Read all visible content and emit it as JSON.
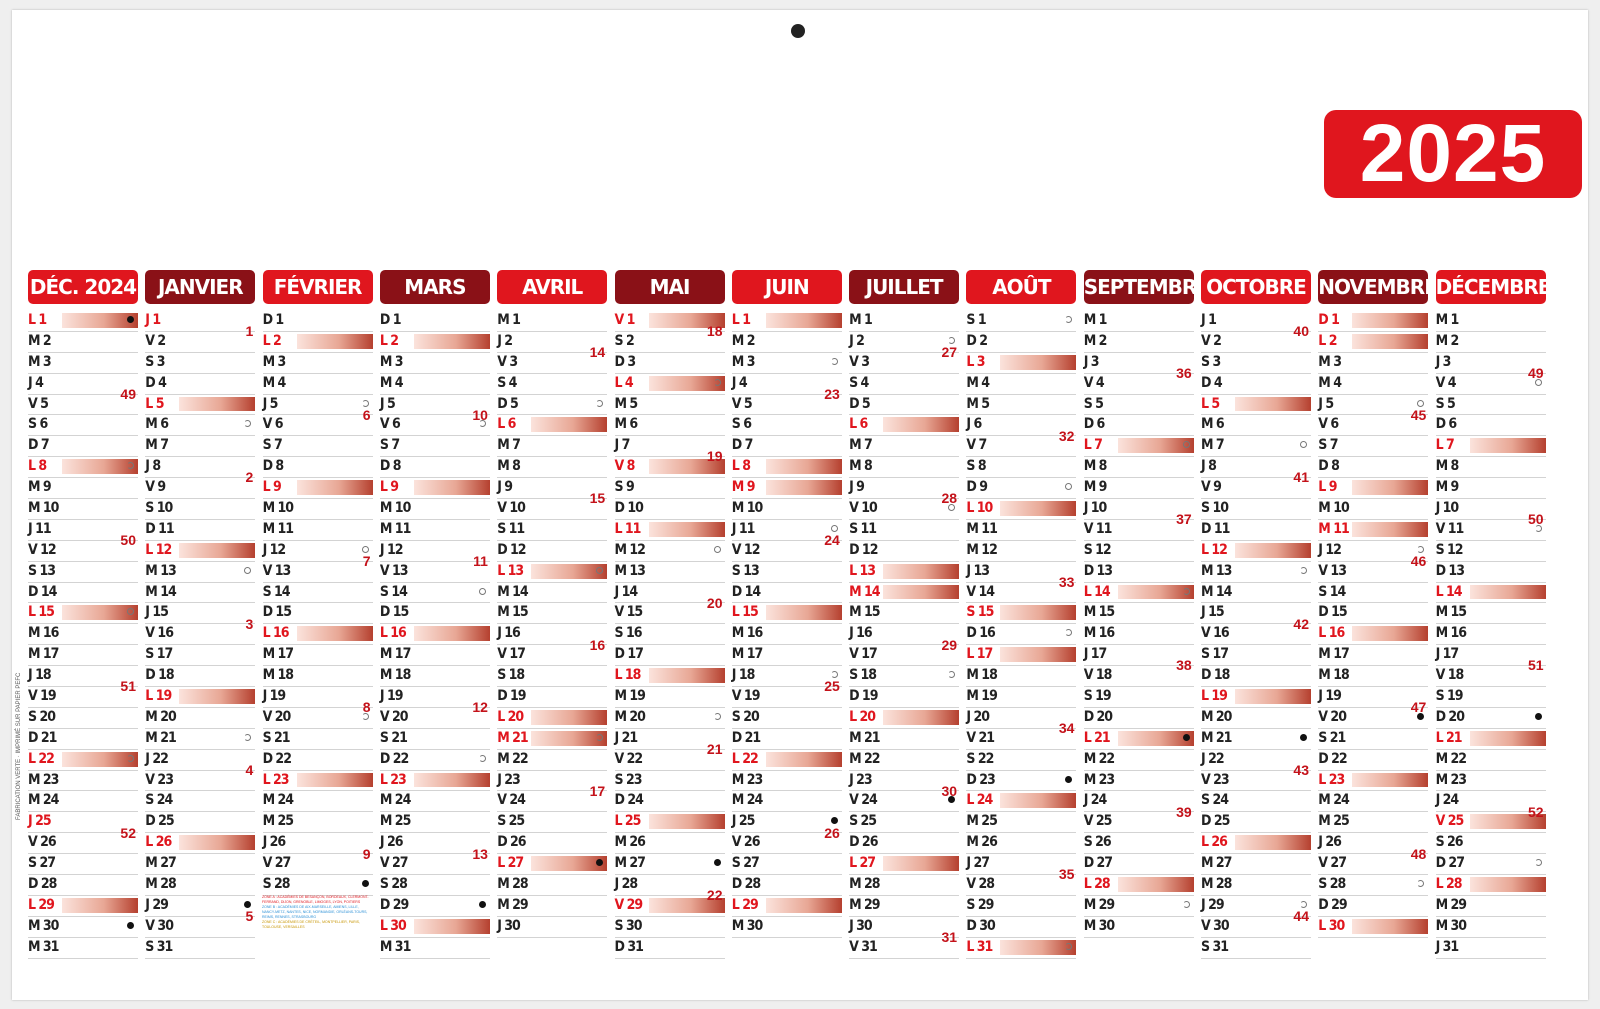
{
  "year": "2025",
  "colors": {
    "red": "#e0161e",
    "dark": "#8a1117"
  },
  "legend_lines": [
    "ZONE A : ACADÉMIES DE BESANÇON, BORDEAUX, CLERMONT-FERRAND, DIJON, GRENOBLE, LIMOGES, LYON, POITIERS",
    "ZONE B : ACADÉMIES DE AIX-MARSEILLE, AMIENS, LILLE, NANCY-METZ, NANTES, NICE, NORMANDIE, ORLÉANS-TOURS, REIMS, RENNES, STRASBOURG",
    "ZONE C : ACADÉMIES DE CRÉTEIL, MONTPELLIER, PARIS, TOULOUSE, VERSAILLES"
  ],
  "side_text": "FABRICATION VERTE · IMPRIMÉ SUR PAPIER PEFC",
  "months": [
    {
      "name": "DÉC. 2024",
      "style": "red",
      "first": 0,
      "days": 31,
      "weeks": [
        {
          "d": 4,
          "n": "49"
        },
        {
          "d": 11,
          "n": "50"
        },
        {
          "d": 18,
          "n": "51"
        },
        {
          "d": 25,
          "n": "52"
        }
      ],
      "hl": [
        1,
        8,
        15,
        22,
        29
      ],
      "we": [
        1,
        8,
        15,
        22,
        25,
        29
      ],
      "moons": {
        "1": "new",
        "8": "q",
        "15": "full",
        "22": "q",
        "30": "new"
      },
      "vac": {}
    },
    {
      "name": "JANVIER",
      "style": "dark",
      "first": 3,
      "days": 31,
      "weeks": [
        {
          "d": 1,
          "n": "1"
        },
        {
          "d": 8,
          "n": "2"
        },
        {
          "d": 15,
          "n": "3"
        },
        {
          "d": 22,
          "n": "4"
        },
        {
          "d": 29,
          "n": "5"
        }
      ],
      "hl": [
        5,
        12,
        19,
        26
      ],
      "we": [
        1,
        5,
        12,
        19,
        26
      ],
      "moons": {
        "6": "q",
        "13": "full",
        "21": "q",
        "29": "new"
      },
      "vac": {}
    },
    {
      "name": "FÉVRIER",
      "style": "red",
      "first": 6,
      "days": 28,
      "weeks": [
        {
          "d": 5,
          "n": "6"
        },
        {
          "d": 12,
          "n": "7"
        },
        {
          "d": 19,
          "n": "8"
        },
        {
          "d": 26,
          "n": "9"
        }
      ],
      "hl": [
        2,
        9,
        16,
        23
      ],
      "we": [
        2,
        9,
        16,
        23
      ],
      "moons": {
        "5": "q",
        "12": "full",
        "20": "q",
        "28": "new"
      },
      "vac": {}
    },
    {
      "name": "MARS",
      "style": "dark",
      "first": 6,
      "days": 31,
      "weeks": [
        {
          "d": 5,
          "n": "10"
        },
        {
          "d": 12,
          "n": "11"
        },
        {
          "d": 19,
          "n": "12"
        },
        {
          "d": 26,
          "n": "13"
        }
      ],
      "hl": [
        2,
        9,
        16,
        23,
        30
      ],
      "we": [
        2,
        9,
        16,
        23,
        30
      ],
      "moons": {
        "6": "q",
        "14": "full",
        "22": "q",
        "29": "new"
      },
      "vac": {}
    },
    {
      "name": "AVRIL",
      "style": "red",
      "first": 2,
      "days": 30,
      "weeks": [
        {
          "d": 2,
          "n": "14"
        },
        {
          "d": 9,
          "n": "15"
        },
        {
          "d": 16,
          "n": "16"
        },
        {
          "d": 23,
          "n": "17"
        }
      ],
      "hl": [
        6,
        13,
        20,
        21,
        27
      ],
      "we": [
        6,
        13,
        20,
        21,
        27
      ],
      "moons": {
        "5": "q",
        "13": "full",
        "21": "q",
        "27": "new"
      },
      "vac": {}
    },
    {
      "name": "MAI",
      "style": "dark",
      "first": 4,
      "days": 31,
      "weeks": [
        {
          "d": 1,
          "n": "18"
        },
        {
          "d": 7,
          "n": "19"
        },
        {
          "d": 14,
          "n": "20"
        },
        {
          "d": 21,
          "n": "21"
        },
        {
          "d": 28,
          "n": "22"
        }
      ],
      "hl": [
        1,
        4,
        8,
        11,
        18,
        25,
        29
      ],
      "we": [
        1,
        4,
        8,
        11,
        18,
        25,
        29
      ],
      "moons": {
        "4": "q",
        "12": "full",
        "20": "q",
        "27": "new"
      },
      "vac": {}
    },
    {
      "name": "JUIN",
      "style": "red",
      "first": 0,
      "days": 30,
      "weeks": [
        {
          "d": 4,
          "n": "23"
        },
        {
          "d": 11,
          "n": "24"
        },
        {
          "d": 18,
          "n": "25"
        },
        {
          "d": 25,
          "n": "26"
        }
      ],
      "hl": [
        1,
        8,
        9,
        15,
        22,
        29
      ],
      "we": [
        1,
        8,
        9,
        15,
        22,
        29
      ],
      "moons": {
        "3": "q",
        "11": "full",
        "18": "q",
        "25": "new"
      },
      "vac": {}
    },
    {
      "name": "JUILLET",
      "style": "dark",
      "first": 2,
      "days": 31,
      "weeks": [
        {
          "d": 2,
          "n": "27"
        },
        {
          "d": 9,
          "n": "28"
        },
        {
          "d": 16,
          "n": "29"
        },
        {
          "d": 23,
          "n": "30"
        },
        {
          "d": 30,
          "n": "31"
        }
      ],
      "hl": [
        6,
        13,
        14,
        20,
        27
      ],
      "we": [
        6,
        13,
        14,
        20,
        27
      ],
      "moons": {
        "2": "q",
        "10": "full",
        "18": "q",
        "24": "new"
      },
      "vac": {}
    },
    {
      "name": "AOÛT",
      "style": "red",
      "first": 5,
      "days": 31,
      "weeks": [
        {
          "d": 6,
          "n": "32"
        },
        {
          "d": 13,
          "n": "33"
        },
        {
          "d": 20,
          "n": "34"
        },
        {
          "d": 27,
          "n": "35"
        }
      ],
      "hl": [
        3,
        10,
        15,
        17,
        24,
        31
      ],
      "we": [
        3,
        10,
        15,
        17,
        24,
        31
      ],
      "moons": {
        "1": "q",
        "9": "full",
        "16": "q",
        "23": "new",
        "31": "q"
      },
      "vac": {}
    },
    {
      "name": "SEPTEMBRE",
      "style": "dark",
      "first": 1,
      "days": 30,
      "weeks": [
        {
          "d": 3,
          "n": "36"
        },
        {
          "d": 10,
          "n": "37"
        },
        {
          "d": 17,
          "n": "38"
        },
        {
          "d": 24,
          "n": "39"
        }
      ],
      "hl": [
        7,
        14,
        21,
        28
      ],
      "we": [
        7,
        14,
        21,
        28
      ],
      "moons": {
        "7": "full",
        "14": "q",
        "21": "new",
        "29": "q"
      },
      "vac": {}
    },
    {
      "name": "OCTOBRE",
      "style": "red",
      "first": 3,
      "days": 31,
      "weeks": [
        {
          "d": 1,
          "n": "40"
        },
        {
          "d": 8,
          "n": "41"
        },
        {
          "d": 15,
          "n": "42"
        },
        {
          "d": 22,
          "n": "43"
        },
        {
          "d": 29,
          "n": "44"
        }
      ],
      "hl": [
        5,
        12,
        19,
        26
      ],
      "we": [
        5,
        12,
        19,
        26
      ],
      "moons": {
        "7": "full",
        "13": "q",
        "21": "new",
        "29": "q"
      },
      "vac": {}
    },
    {
      "name": "NOVEMBRE",
      "style": "dark",
      "first": 6,
      "days": 30,
      "weeks": [
        {
          "d": 5,
          "n": "45"
        },
        {
          "d": 12,
          "n": "46"
        },
        {
          "d": 19,
          "n": "47"
        },
        {
          "d": 26,
          "n": "48"
        }
      ],
      "hl": [
        1,
        2,
        9,
        11,
        16,
        23,
        30
      ],
      "we": [
        1,
        2,
        9,
        11,
        16,
        23,
        30
      ],
      "moons": {
        "5": "full",
        "12": "q",
        "20": "new",
        "28": "q"
      },
      "vac": {}
    },
    {
      "name": "DÉCEMBRE",
      "style": "red",
      "first": 1,
      "days": 31,
      "weeks": [
        {
          "d": 3,
          "n": "49"
        },
        {
          "d": 10,
          "n": "50"
        },
        {
          "d": 17,
          "n": "51"
        },
        {
          "d": 24,
          "n": "52"
        }
      ],
      "hl": [
        7,
        14,
        21,
        25,
        28
      ],
      "we": [
        7,
        14,
        21,
        25,
        28
      ],
      "moons": {
        "4": "full",
        "11": "q",
        "20": "new",
        "27": "q"
      },
      "vac": {}
    }
  ],
  "weekday_letters": [
    "L",
    "M",
    "M",
    "J",
    "V",
    "S",
    "D"
  ]
}
